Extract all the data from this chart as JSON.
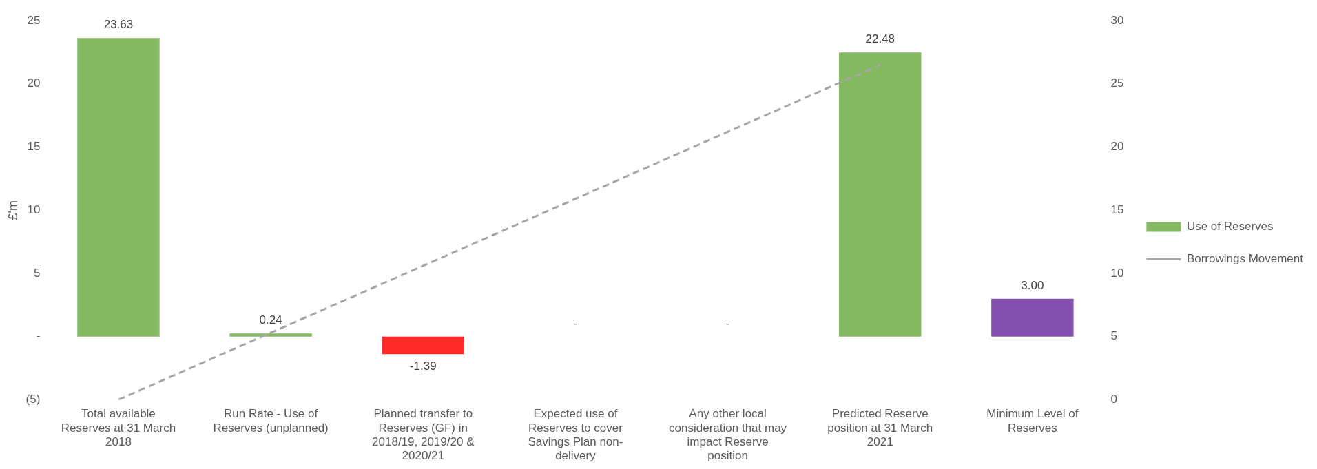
{
  "chart_data": {
    "type": "bar",
    "ylabel": "£'m",
    "categories": [
      "Total available Reserves at 31 March 2018",
      "Run Rate - Use of Reserves (unplanned)",
      "Planned transfer to Reserves (GF) in 2018/19, 2019/20 & 2020/21",
      "Expected use of Reserves to cover Savings Plan non-delivery",
      "Any other local consideration that may impact Reserve position",
      "Predicted Reserve position at 31 March 2021",
      "Minimum Level of Reserves"
    ],
    "series": [
      {
        "name": "Use of Reserves",
        "color": "#84b962",
        "colors": [
          "#84b962",
          "#84b962",
          "#ff2a2a",
          "#84b962",
          "#84b962",
          "#84b962",
          "#8450b0"
        ],
        "values": [
          23.63,
          0.24,
          -1.39,
          0,
          0,
          22.48,
          3.0
        ],
        "value_labels": [
          "23.63",
          "0.24",
          "-1.39",
          "-",
          "-",
          "22.48",
          "3.00"
        ]
      },
      {
        "name": "Borrowings Movement",
        "type": "line",
        "axis": "y2",
        "color": "#a6a6a6",
        "line_style": "dashed",
        "marker": "none",
        "values": [
          0,
          5.3,
          10.6,
          15.9,
          21.2,
          26.5,
          null
        ]
      }
    ],
    "ylim": [
      -5,
      25
    ],
    "yticks": [
      {
        "value": -5,
        "label": "(5)"
      },
      {
        "value": 0,
        "label": "-"
      },
      5,
      10,
      15,
      20,
      25
    ],
    "y2lim": [
      0,
      30
    ],
    "y2ticks": [
      0,
      5,
      10,
      15,
      20,
      25,
      30
    ],
    "grid": false,
    "legend": "right"
  }
}
